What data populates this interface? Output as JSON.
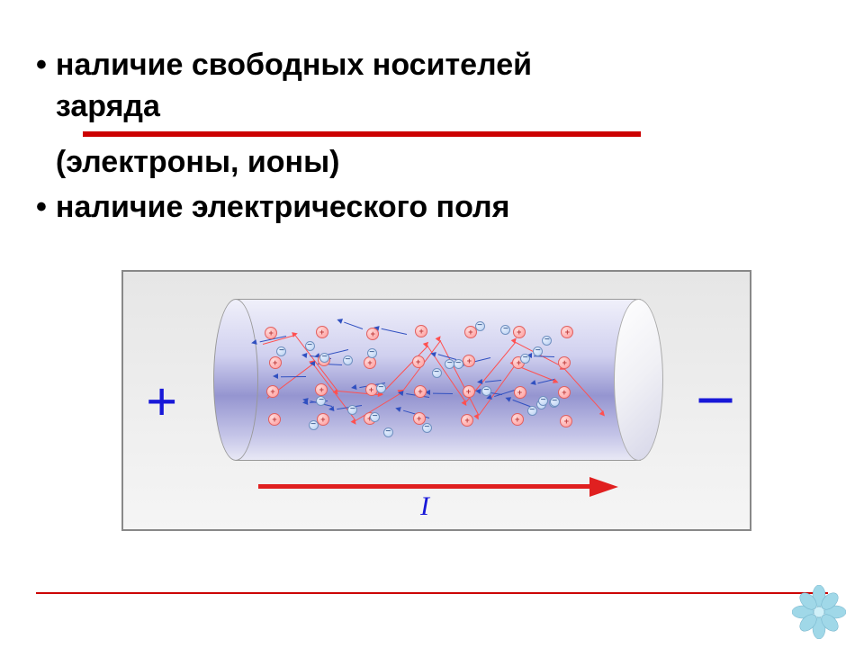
{
  "bullets": {
    "item1_line1": "наличие свободных носителей",
    "item1_line2": "заряда",
    "item1_line3": "(электроны, ионы)",
    "item2": "наличие электрического поля"
  },
  "diagram": {
    "plus_symbol": "+",
    "minus_symbol": "–",
    "plus_color": "#1818d8",
    "minus_color": "#1818d8",
    "current_label": "I",
    "current_label_color": "#1818d8",
    "arrow_color": "#e02020",
    "cylinder_gradient_top": "#f0f0fa",
    "cylinder_gradient_mid": "#9595d0",
    "box_bg": "#eeeeee",
    "positive_particle_color": "#ff9a9a",
    "negative_particle_color": "#b8d0f0",
    "positive_symbol": "+",
    "negative_symbol": "−",
    "positive_rows": 4,
    "positive_cols": 7,
    "path_red_color": "#ff5050",
    "path_blue_color": "#3050c0"
  },
  "accent_color": "#cc0000",
  "flower_color": "#a0d8e8"
}
